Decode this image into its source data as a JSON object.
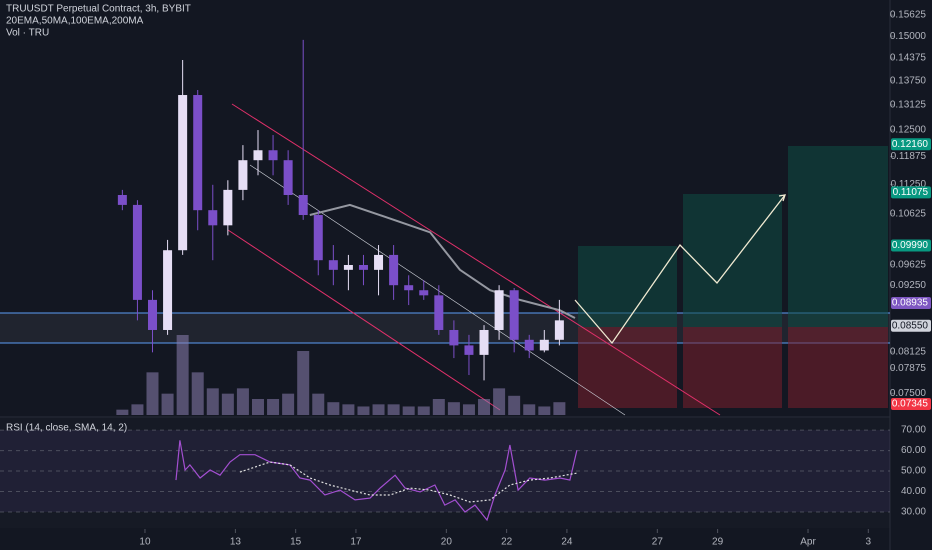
{
  "chart_data": [
    {
      "type": "candlestick",
      "title": "TRUUSDT Perpetual Contract, 3h, BYBIT",
      "indicators": "20EMA,50MA,100EMA,200MA",
      "volume_label": "Vol · TRU",
      "log_scale": true,
      "xlim": [
        5.19,
        34.72
      ],
      "ylim": [
        0.0719,
        0.1609
      ],
      "xticks": [
        10,
        13,
        15,
        17,
        20,
        22,
        24,
        27,
        29,
        {
          "value": 32,
          "label": "Apr"
        },
        {
          "value": 34,
          "label": "3"
        }
      ],
      "yticks": [
        {
          "value": 0.15625,
          "label": "0.15625"
        },
        {
          "value": 0.15,
          "label": "0.15000"
        },
        {
          "value": 0.14375,
          "label": "0.14375"
        },
        {
          "value": 0.1375,
          "label": "0.13750"
        },
        {
          "value": 0.13125,
          "label": "0.13125"
        },
        {
          "value": 0.125,
          "label": "0.12500"
        },
        {
          "value": 0.11875,
          "label": "0.11875"
        },
        {
          "value": 0.1125,
          "label": "0.11250"
        },
        {
          "value": 0.10625,
          "label": "0.10625"
        },
        {
          "value": 0.09625,
          "label": "0.09625"
        },
        {
          "value": 0.0925,
          "label": "0.09250"
        },
        {
          "value": 0.08125,
          "label": "0.08125"
        },
        {
          "value": 0.07875,
          "label": "0.07875"
        },
        {
          "value": 0.075,
          "label": "0.07500"
        }
      ],
      "price_labels": [
        {
          "value": 0.1216,
          "label": "0.12160",
          "color": "#089981"
        },
        {
          "value": 0.11075,
          "label": "0.11075",
          "color": "#089981"
        },
        {
          "value": 0.0999,
          "label": "0.09990",
          "color": "#089981"
        },
        {
          "value": 0.08935,
          "label": "0.08935",
          "color": "#7e57c2"
        },
        {
          "value": 0.0855,
          "label": "0.08550",
          "color": "#d1d4dc"
        },
        {
          "value": 0.07345,
          "label": "0.07345",
          "color": "#f23645"
        }
      ],
      "up_color": "#e6def5",
      "down_color": "#7b4fc9",
      "volume_color": "#8c7fb0",
      "x": [
        9.25,
        9.75,
        10.25,
        10.75,
        11.25,
        11.75,
        12.25,
        12.75,
        13.25,
        13.75,
        14.25,
        14.75,
        15.25,
        15.75,
        16.25,
        16.75,
        17.25,
        17.75,
        18.25,
        18.75,
        19.25,
        19.75,
        20.25,
        20.75,
        21.25,
        21.75,
        22.25,
        22.75,
        23.25,
        23.75
      ],
      "open": [
        0.1102,
        0.1081,
        0.0899,
        0.0848,
        0.099,
        0.1338,
        0.107,
        0.1039,
        0.1113,
        0.1179,
        0.1202,
        0.1179,
        0.1102,
        0.106,
        0.0971,
        0.0953,
        0.0962,
        0.0953,
        0.0981,
        0.0925,
        0.0916,
        0.0907,
        0.0848,
        0.0823,
        0.0808,
        0.0848,
        0.0916,
        0.0832,
        0.0815,
        0.0832
      ],
      "high": [
        0.1113,
        0.1091,
        0.0916,
        0.101,
        0.1432,
        0.1351,
        0.1124,
        0.1134,
        0.1214,
        0.125,
        0.1238,
        0.1202,
        0.1489,
        0.107,
        0.1,
        0.0981,
        0.0981,
        0.1,
        0.1,
        0.0943,
        0.0934,
        0.0925,
        0.0864,
        0.084,
        0.0856,
        0.0925,
        0.092,
        0.084,
        0.0848,
        0.0899
      ],
      "low": [
        0.107,
        0.0864,
        0.0812,
        0.084,
        0.0981,
        0.1029,
        0.0971,
        0.1019,
        0.1091,
        0.1145,
        0.1145,
        0.1081,
        0.105,
        0.0943,
        0.0925,
        0.0916,
        0.0925,
        0.0907,
        0.0899,
        0.089,
        0.0899,
        0.084,
        0.0803,
        0.0777,
        0.0769,
        0.0832,
        0.0812,
        0.0803,
        0.0812,
        0.0823
      ],
      "close": [
        0.1081,
        0.0899,
        0.0848,
        0.099,
        0.1338,
        0.107,
        0.1039,
        0.1113,
        0.1179,
        0.1202,
        0.1179,
        0.1102,
        0.106,
        0.0971,
        0.0953,
        0.0962,
        0.0953,
        0.0981,
        0.0925,
        0.0916,
        0.0907,
        0.0848,
        0.0823,
        0.0808,
        0.0848,
        0.0916,
        0.0832,
        0.0815,
        0.0832,
        0.0864
      ],
      "volume": [
        5,
        10,
        40,
        20,
        75,
        40,
        25,
        20,
        25,
        15,
        15,
        20,
        60,
        20,
        12,
        10,
        8,
        10,
        10,
        8,
        8,
        15,
        12,
        10,
        15,
        25,
        18,
        10,
        8,
        12
      ],
      "ema": {
        "color": "#9598a1",
        "x": [
          15.47,
          16.8,
          18.46,
          19.46,
          20.45,
          21.45,
          22.44,
          23.77,
          24.27
        ],
        "values": [
          0.106,
          0.1081,
          0.1046,
          0.1025,
          0.0953,
          0.0916,
          0.0899,
          0.0881,
          0.0868
        ]
      }
    },
    {
      "type": "line",
      "title": "RSI (14, close, SMA, 14, 2)",
      "xlim": [
        5.19,
        34.72
      ],
      "ylim": [
        22.2,
        75.9
      ],
      "yticks": [
        {
          "value": 70,
          "label": "70.00"
        },
        {
          "value": 60,
          "label": "60.00"
        },
        {
          "value": 50,
          "label": "50.00"
        },
        {
          "value": 40,
          "label": "40.00"
        },
        {
          "value": 30,
          "label": "30.00"
        }
      ],
      "series": [
        {
          "color": "#a34fd1",
          "x": [
            11.03,
            11.16,
            11.33,
            11.49,
            11.83,
            12.16,
            12.49,
            12.82,
            13.15,
            13.65,
            14.15,
            14.81,
            15.14,
            15.48,
            15.97,
            16.47,
            16.97,
            17.47,
            17.8,
            18.3,
            18.63,
            19.13,
            19.62,
            19.95,
            20.29,
            20.62,
            20.95,
            21.35,
            21.61,
            21.95,
            22.11,
            22.38,
            22.77,
            23.27,
            23.77,
            24.1,
            24.33
          ],
          "values": [
            45.6,
            65,
            50.5,
            53,
            46.6,
            50.5,
            48,
            54.4,
            58,
            58,
            54.4,
            53,
            46.6,
            45.6,
            38.3,
            40.7,
            35.9,
            36.8,
            41.7,
            48,
            41.7,
            39.8,
            43.2,
            33.4,
            35.9,
            30,
            33.4,
            26.1,
            38.3,
            50.5,
            62.7,
            40.7,
            46.6,
            45.6,
            46.6,
            45.6,
            60.2
          ]
        },
        {
          "color": "#e0e0e0",
          "dashed": true,
          "x": [
            13.15,
            14.15,
            14.81,
            15.48,
            16.14,
            16.8,
            17.47,
            18.13,
            18.79,
            19.46,
            20.12,
            20.78,
            21.45,
            22.11,
            22.77,
            23.44,
            24.33
          ],
          "values": [
            49.5,
            54.4,
            53,
            46.6,
            43.2,
            40.7,
            38.3,
            38.3,
            41.7,
            40.7,
            38.3,
            34.9,
            35.9,
            43.2,
            45.6,
            46.6,
            49
          ]
        }
      ]
    }
  ]
}
